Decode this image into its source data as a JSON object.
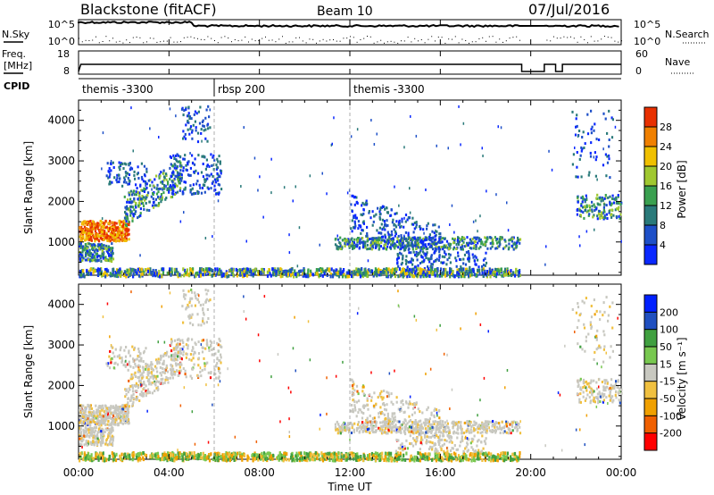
{
  "header": {
    "radar": "Blackstone (fitACF)",
    "beam": "Beam 10",
    "date": "07/Jul/2016"
  },
  "nsky_panel": {
    "left_label": "N.Sky",
    "left_ticks": [
      "10^5",
      "10^0"
    ],
    "right_label": "N.Search",
    "right_ticks": [
      "10^5",
      "10^0"
    ]
  },
  "freq_panel": {
    "left_label_1": "Freq.",
    "left_label_2": "[MHz]",
    "left_ticks": [
      "18",
      "8"
    ],
    "right_label": "Nave",
    "right_ticks": [
      "60",
      "0"
    ]
  },
  "cpid": {
    "label": "CPID",
    "segments": [
      {
        "name": "themis -3300",
        "start_hour": 0,
        "end_hour": 6
      },
      {
        "name": "rbsp 200",
        "start_hour": 6,
        "end_hour": 12
      },
      {
        "name": "themis -3300",
        "start_hour": 12,
        "end_hour": 24
      }
    ]
  },
  "colors": {
    "power": [
      "#0a28ff",
      "#1e50c8",
      "#2a7a7a",
      "#3aa050",
      "#a0c830",
      "#f0c000",
      "#f08000",
      "#e83000",
      "#ff0000"
    ],
    "velocity": [
      "#ff0000",
      "#f06000",
      "#f0a000",
      "#f0c040",
      "#c8c8c0",
      "#78c850",
      "#40a040",
      "#2050c0",
      "#0020ff"
    ]
  },
  "chart_data": [
    {
      "type": "heatmap",
      "name": "power",
      "ylabel": "Slant Range [km]",
      "y_ticks": [
        1000,
        2000,
        3000,
        4000
      ],
      "ylim": [
        180,
        4500
      ],
      "xlim_hours": [
        0,
        24
      ],
      "colorbar": {
        "label": "Power [dB]",
        "ticks": [
          "4",
          "8",
          "12",
          "16",
          "20",
          "24",
          "28"
        ],
        "range": [
          0,
          30
        ]
      }
    },
    {
      "type": "heatmap",
      "name": "velocity",
      "ylabel": "Slant Range [km]",
      "y_ticks": [
        1000,
        2000,
        3000,
        4000
      ],
      "ylim": [
        180,
        4500
      ],
      "xlim_hours": [
        0,
        24
      ],
      "colorbar": {
        "label": "Velocity [m s⁻¹]",
        "ticks": [
          "-200",
          "-100",
          "-50",
          "-15",
          "15",
          "50",
          "100",
          "200"
        ]
      }
    }
  ],
  "x_axis": {
    "label": "Time UT",
    "ticks": [
      "00:00",
      "04:00",
      "08:00",
      "12:00",
      "16:00",
      "20:00",
      "00:00"
    ]
  }
}
